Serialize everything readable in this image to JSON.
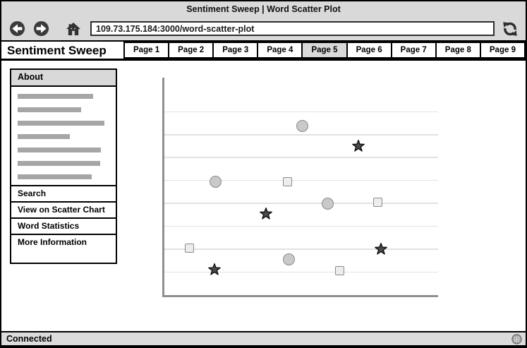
{
  "window": {
    "title": "Sentiment Sweep | Word Scatter Plot",
    "status": "Connected"
  },
  "toolbar": {
    "url": "109.73.175.184:3000/word-scatter-plot"
  },
  "header": {
    "brand": "Sentiment Sweep",
    "active_tab": "Page 5",
    "tabs": [
      {
        "label": "Page 1"
      },
      {
        "label": "Page 2"
      },
      {
        "label": "Page 3"
      },
      {
        "label": "Page 4"
      },
      {
        "label": "Page 5"
      },
      {
        "label": "Page 6"
      },
      {
        "label": "Page 7"
      },
      {
        "label": "Page 8"
      },
      {
        "label": "Page 9"
      }
    ]
  },
  "sidebar": {
    "about_title": "About",
    "placeholder_bar_widths": [
      107,
      90,
      123,
      74,
      118,
      117,
      105
    ],
    "menu_items": [
      "Search",
      "View on Scatter Chart",
      "Word Statistics",
      "More Information"
    ]
  },
  "icons": {
    "back": "back-arrow-icon",
    "forward": "forward-arrow-icon",
    "home": "home-icon",
    "refresh": "refresh-icon",
    "globe": "globe-icon"
  },
  "colors": {
    "chrome_gray": "#d9d9d9",
    "button_dark": "#3b3b3b",
    "placeholder_bar": "#a6a6a6",
    "gridline": "#e2e2e2",
    "axis": "#8f8f8f",
    "circle_fill": "#c9c9c9",
    "square_fill": "#ededed",
    "marker_stroke": "#8a8a8a",
    "star_fill": "#4a4a4a"
  },
  "chart_data": {
    "type": "scatter",
    "title": "",
    "xlabel": "",
    "ylabel": "",
    "axis_tick_labels_visible": false,
    "legend_visible": false,
    "grid": "horizontal-only",
    "xlim": [
      0,
      12
    ],
    "ylim": [
      0,
      9.5
    ],
    "gridlines_y": [
      1,
      2,
      3,
      4,
      5,
      6,
      7,
      8
    ],
    "series": [
      {
        "name": "circles",
        "marker": "circle",
        "points": [
          [
            6.05,
            7.4
          ],
          [
            2.25,
            4.95
          ],
          [
            7.15,
            4.0
          ],
          [
            5.45,
            1.55
          ]
        ]
      },
      {
        "name": "squares",
        "marker": "square",
        "points": [
          [
            5.4,
            4.95
          ],
          [
            9.35,
            4.05
          ],
          [
            1.1,
            2.05
          ],
          [
            7.7,
            1.05
          ]
        ]
      },
      {
        "name": "stars",
        "marker": "star",
        "points": [
          [
            8.5,
            6.5
          ],
          [
            4.45,
            3.55
          ],
          [
            9.5,
            2.0
          ],
          [
            2.2,
            1.1
          ]
        ]
      }
    ]
  }
}
